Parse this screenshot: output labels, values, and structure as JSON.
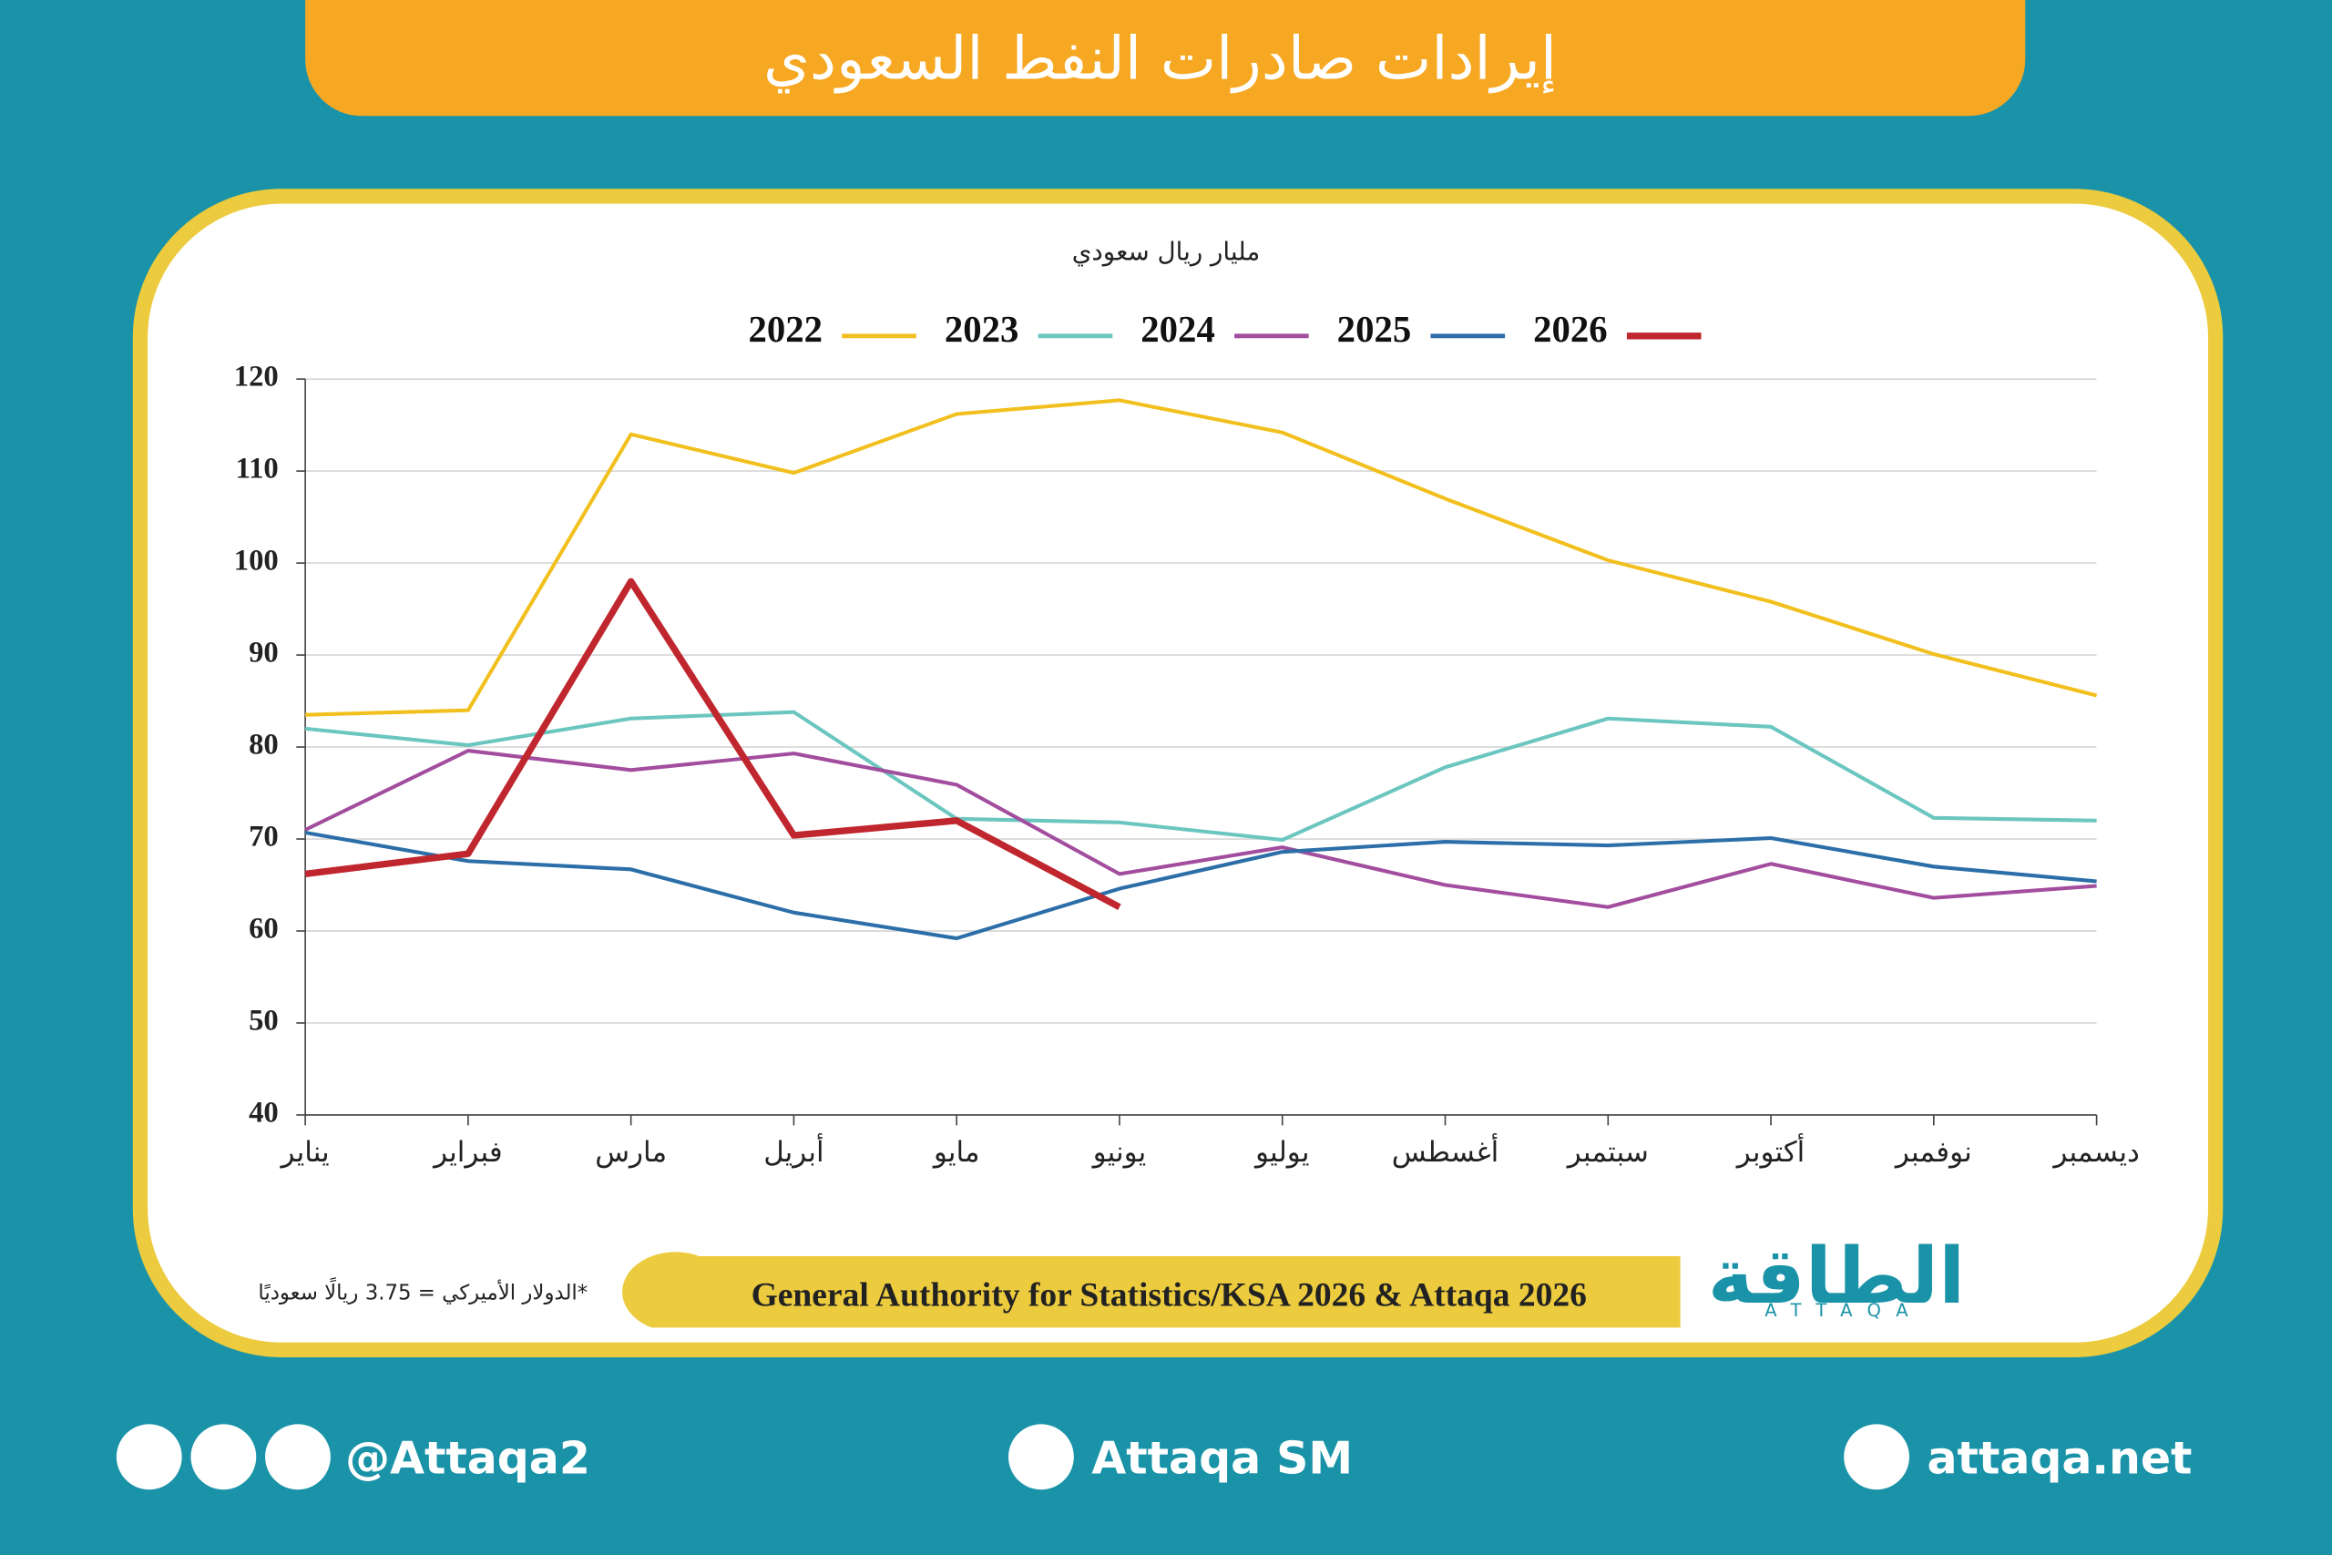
{
  "header": {
    "title": "إيرادات صادرات النفط السعودي"
  },
  "chart_data": {
    "type": "line",
    "subtitle": "مليار ريال سعودي",
    "categories": [
      "يناير",
      "فبراير",
      "مارس",
      "أبريل",
      "مايو",
      "يونيو",
      "يوليو",
      "أغسطس",
      "سبتمبر",
      "أكتوبر",
      "نوفمبر",
      "ديسمبر"
    ],
    "series": [
      {
        "name": "2022",
        "color": "#f2c01e",
        "values": [
          83.5,
          84,
          114,
          109.8,
          116.2,
          117.7,
          114.2,
          107,
          100.3,
          95.8,
          90.1,
          85.6
        ]
      },
      {
        "name": "2023",
        "color": "#6cc6c0",
        "values": [
          82,
          80.2,
          83.1,
          83.8,
          72.2,
          71.8,
          69.9,
          77.8,
          83.1,
          82.2,
          72.3,
          72
        ]
      },
      {
        "name": "2024",
        "color": "#a24d9e",
        "values": [
          71,
          79.6,
          77.5,
          79.3,
          75.9,
          66.2,
          69.1,
          65,
          62.6,
          67.3,
          63.6,
          64.9
        ]
      },
      {
        "name": "2025",
        "color": "#2b6ea8",
        "values": [
          70.7,
          67.6,
          66.7,
          62,
          59.2,
          64.6,
          68.6,
          69.7,
          69.3,
          70.1,
          67,
          65.4
        ]
      },
      {
        "name": "2026",
        "color": "#c0262d",
        "values": [
          66.2,
          68.4,
          98,
          70.4,
          72,
          62.6,
          null,
          null,
          null,
          null,
          null,
          null
        ]
      }
    ],
    "ylim": [
      40,
      120
    ],
    "yticks": [
      40,
      50,
      60,
      70,
      80,
      90,
      100,
      110,
      120
    ],
    "grid": true
  },
  "footer": {
    "note": "الدولار الأميركي = 3.75 ريالًا سعوديًا*",
    "source": "General Authority for Statistics/KSA 2026 & Attaqa 2026",
    "logo": "الطاقة",
    "logo_sub": "ATTAQA",
    "social": "@Attaqa2",
    "youtube": "Attaqa SM",
    "website": "attaqa.net"
  }
}
